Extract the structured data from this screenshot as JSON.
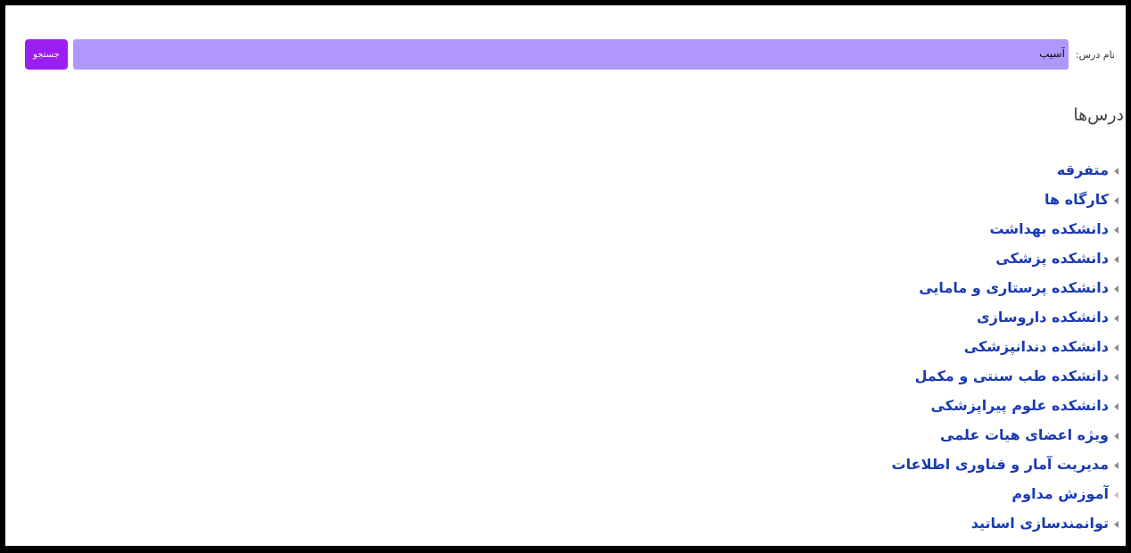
{
  "search": {
    "label": "نام درس:",
    "value": "آسیب",
    "button_label": "جستجو"
  },
  "section_title": "درس‌ها",
  "categories": [
    {
      "label": "متفرقه"
    },
    {
      "label": "کارگاه ها"
    },
    {
      "label": "دانشکده بهداشت"
    },
    {
      "label": "دانشکده پزشکی"
    },
    {
      "label": "دانشکده پرستاری و مامایی"
    },
    {
      "label": "دانشکده داروسازی"
    },
    {
      "label": "دانشکده دندانپزشکی"
    },
    {
      "label": "دانشکده طب سنتی و مکمل"
    },
    {
      "label": "دانشکده علوم پیراپزشکی"
    },
    {
      "label": "ویژه اعضای هیات علمی"
    },
    {
      "label": "مدیریت آمار و فناوری اطلاعات"
    },
    {
      "label": "آموزش مداوم"
    },
    {
      "label": "توانمندسازی اساتید"
    }
  ],
  "colors": {
    "input_bg": "#b097fb",
    "button_bg": "#9b1ff3",
    "link": "#1a3bb3"
  },
  "icons": {
    "caret": "triangle-left-icon"
  }
}
